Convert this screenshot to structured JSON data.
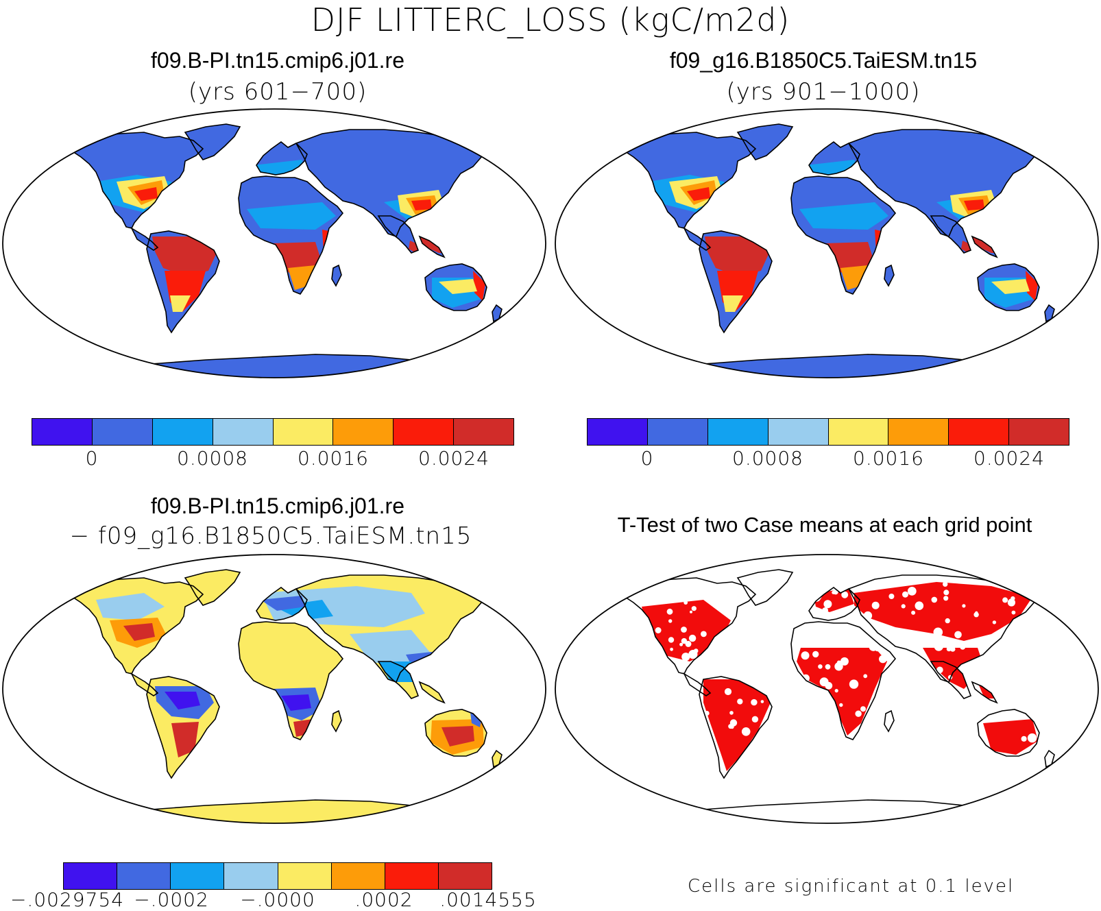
{
  "figure": {
    "title": "DJF LITTERC_LOSS (kgC/m2d)"
  },
  "panels": [
    {
      "title": "f09.B-PI.tn15.cmip6.j01.re",
      "subtitle": "(yrs 601−700)",
      "colorbar": {
        "colors": [
          "#4012ef",
          "#4169e1",
          "#12a2f0",
          "#99cdee",
          "#fbeb63",
          "#fd9c09",
          "#fa1c0a",
          "#d12c29"
        ],
        "ticks": [
          "0",
          "0.0008",
          "0.0016",
          "0.0024"
        ]
      }
    },
    {
      "title": "f09_g16.B1850C5.TaiESM.tn15",
      "subtitle": "(yrs 901−1000)",
      "colorbar": {
        "colors": [
          "#4012ef",
          "#4169e1",
          "#12a2f0",
          "#99cdee",
          "#fbeb63",
          "#fd9c09",
          "#fa1c0a",
          "#d12c29"
        ],
        "ticks": [
          "0",
          "0.0008",
          "0.0016",
          "0.0024"
        ]
      }
    },
    {
      "title": "f09.B-PI.tn15.cmip6.j01.re",
      "subtitle": "− f09_g16.B1850C5.TaiESM.tn15",
      "colorbar": {
        "colors": [
          "#4012ef",
          "#4169e1",
          "#12a2f0",
          "#99cdee",
          "#fbeb63",
          "#fd9c09",
          "#fa1c0a",
          "#d12c29"
        ],
        "ticks": [
          "−.0029754",
          "−.0002",
          "−.0000",
          ".0002",
          ".0014555"
        ]
      }
    },
    {
      "title": "T-Test of two Case means at each grid point",
      "note": "Cells are significant at 0.1 level",
      "sig_color": "#f20c0c"
    }
  ],
  "colors": {
    "ocean": "#ffffff",
    "outline": "#000000"
  }
}
